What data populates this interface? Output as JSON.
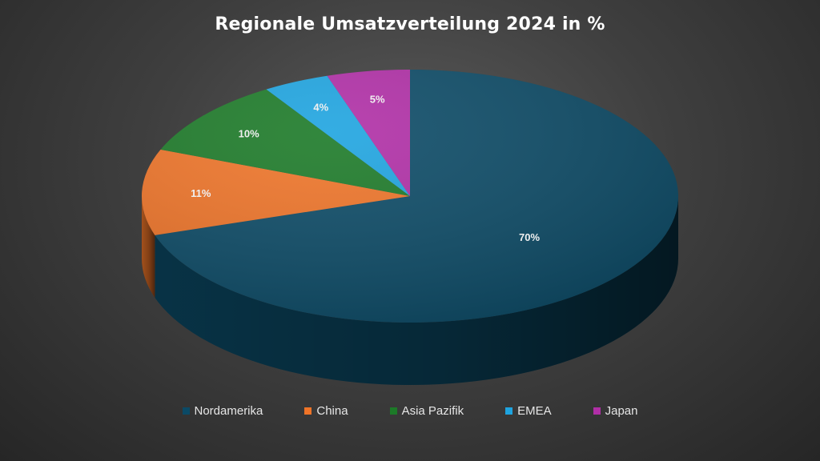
{
  "chart_data": {
    "type": "pie",
    "title": "Regionale Umsatzverteilung 2024 in %",
    "categories": [
      "Nordamerika",
      "China",
      "Asia Pazifik",
      "EMEA",
      "Japan"
    ],
    "values": [
      70,
      11,
      10,
      4,
      5
    ],
    "data_labels": [
      "70%",
      "11%",
      "10%",
      "4%",
      "5%"
    ],
    "colors": [
      "#0b4a66",
      "#ef7428",
      "#1c7a28",
      "#1ea4e0",
      "#b02ea6"
    ],
    "style": "3d",
    "legend_position": "bottom"
  }
}
